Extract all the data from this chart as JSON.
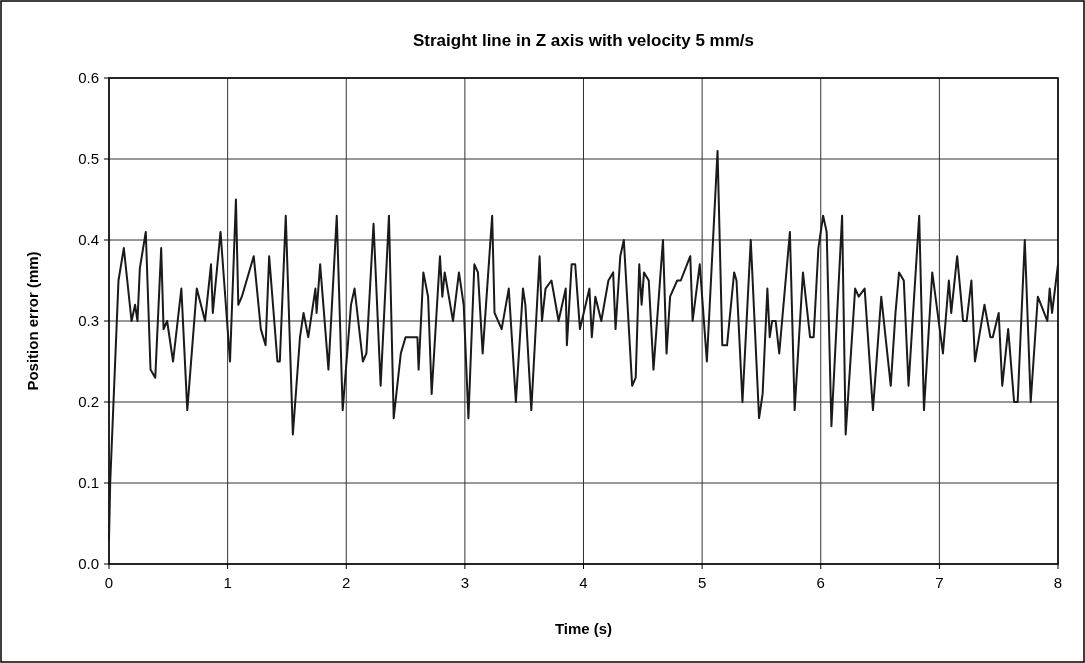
{
  "chart_data": {
    "type": "line",
    "title": "Straight line in Z axis with velocity 5 mm/s",
    "xlabel": "Time (s)",
    "ylabel": "Position error (mm)",
    "xlim": [
      0,
      8
    ],
    "xticks": [
      0,
      1,
      2,
      3,
      4,
      5,
      6,
      7,
      8
    ],
    "ylim": [
      0,
      0.6
    ],
    "yticks": [
      {
        "value": 0,
        "label": "0.0"
      },
      0.1,
      0.2,
      0.3,
      0.4,
      0.5,
      0.6
    ],
    "grid": true,
    "marker": "none",
    "line_style": "solid",
    "series": [
      {
        "color": "#1a1a1a",
        "x": [
          0,
          0.01,
          0.08,
          0.125,
          0.19,
          0.22,
          0.24,
          0.26,
          0.31,
          0.35,
          0.39,
          0.44,
          0.46,
          0.49,
          0.54,
          0.61,
          0.66,
          0.74,
          0.81,
          0.86,
          0.875,
          0.94,
          1.02,
          1.07,
          1.09,
          1.12,
          1.22,
          1.28,
          1.32,
          1.35,
          1.42,
          1.44,
          1.49,
          1.55,
          1.61,
          1.64,
          1.68,
          1.74,
          1.75,
          1.78,
          1.85,
          1.92,
          1.97,
          2.04,
          2.07,
          2.14,
          2.17,
          2.23,
          2.29,
          2.36,
          2.4,
          2.46,
          2.5,
          2.6,
          2.61,
          2.65,
          2.69,
          2.72,
          2.79,
          2.81,
          2.83,
          2.9,
          2.95,
          2.99,
          3.03,
          3.08,
          3.11,
          3.15,
          3.23,
          3.25,
          3.31,
          3.37,
          3.43,
          3.49,
          3.51,
          3.56,
          3.63,
          3.65,
          3.68,
          3.73,
          3.79,
          3.85,
          3.86,
          3.9,
          3.93,
          3.97,
          4.05,
          4.07,
          4.1,
          4.15,
          4.21,
          4.25,
          4.27,
          4.31,
          4.34,
          4.41,
          4.44,
          4.47,
          4.49,
          4.51,
          4.55,
          4.59,
          4.67,
          4.7,
          4.73,
          4.79,
          4.82,
          4.9,
          4.92,
          4.98,
          5.04,
          5.13,
          5.17,
          5.21,
          5.27,
          5.29,
          5.34,
          5.41,
          5.48,
          5.51,
          5.55,
          5.57,
          5.59,
          5.62,
          5.65,
          5.74,
          5.78,
          5.85,
          5.91,
          5.94,
          5.98,
          6.02,
          6.05,
          6.09,
          6.18,
          6.21,
          6.29,
          6.32,
          6.37,
          6.44,
          6.51,
          6.59,
          6.63,
          6.66,
          6.7,
          6.74,
          6.83,
          6.87,
          6.94,
          7.03,
          7.08,
          7.1,
          7.15,
          7.2,
          7.23,
          7.27,
          7.3,
          7.38,
          7.43,
          7.45,
          7.5,
          7.53,
          7.58,
          7.63,
          7.66,
          7.72,
          7.77,
          7.83,
          7.91,
          7.93,
          7.95,
          8
        ],
        "values": [
          0.03,
          0.1,
          0.35,
          0.39,
          0.3,
          0.32,
          0.3,
          0.365,
          0.41,
          0.24,
          0.23,
          0.39,
          0.29,
          0.3,
          0.25,
          0.34,
          0.19,
          0.34,
          0.3,
          0.37,
          0.31,
          0.41,
          0.25,
          0.45,
          0.32,
          0.33,
          0.38,
          0.29,
          0.27,
          0.38,
          0.25,
          0.25,
          0.43,
          0.16,
          0.28,
          0.31,
          0.28,
          0.34,
          0.31,
          0.37,
          0.24,
          0.43,
          0.19,
          0.32,
          0.34,
          0.25,
          0.26,
          0.42,
          0.22,
          0.43,
          0.18,
          0.26,
          0.28,
          0.28,
          0.24,
          0.36,
          0.33,
          0.21,
          0.38,
          0.33,
          0.36,
          0.3,
          0.36,
          0.32,
          0.18,
          0.37,
          0.36,
          0.26,
          0.43,
          0.31,
          0.29,
          0.34,
          0.2,
          0.34,
          0.32,
          0.19,
          0.38,
          0.3,
          0.34,
          0.35,
          0.3,
          0.34,
          0.27,
          0.37,
          0.37,
          0.29,
          0.34,
          0.28,
          0.33,
          0.3,
          0.35,
          0.36,
          0.29,
          0.38,
          0.4,
          0.22,
          0.23,
          0.37,
          0.32,
          0.36,
          0.35,
          0.24,
          0.4,
          0.26,
          0.33,
          0.35,
          0.35,
          0.38,
          0.3,
          0.37,
          0.25,
          0.51,
          0.27,
          0.27,
          0.36,
          0.35,
          0.2,
          0.4,
          0.18,
          0.21,
          0.34,
          0.28,
          0.3,
          0.3,
          0.26,
          0.41,
          0.19,
          0.36,
          0.28,
          0.28,
          0.39,
          0.43,
          0.41,
          0.17,
          0.43,
          0.16,
          0.34,
          0.33,
          0.34,
          0.19,
          0.33,
          0.22,
          0.31,
          0.36,
          0.35,
          0.22,
          0.43,
          0.19,
          0.36,
          0.26,
          0.35,
          0.31,
          0.38,
          0.3,
          0.3,
          0.35,
          0.25,
          0.32,
          0.28,
          0.28,
          0.31,
          0.22,
          0.29,
          0.2,
          0.2,
          0.4,
          0.2,
          0.33,
          0.3,
          0.34,
          0.31,
          0.37
        ]
      }
    ]
  }
}
